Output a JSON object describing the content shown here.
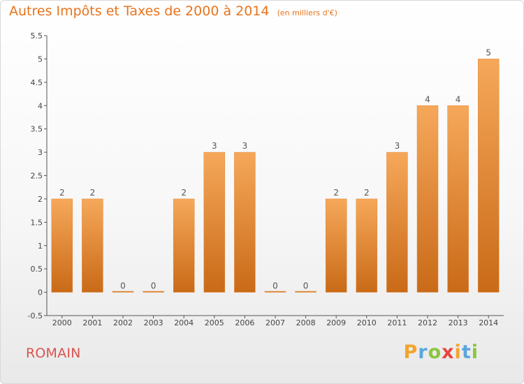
{
  "header": {
    "title": "Autres Impôts et Taxes de 2000 à 2014",
    "subtitle": "(en milliers d'€)"
  },
  "footer": {
    "town": "ROMAIN",
    "brand": "Proxiti",
    "brand_letters": [
      "P",
      "r",
      "o",
      "x",
      "i",
      "t",
      "i"
    ]
  },
  "colors": {
    "bar_top": "#f6a85a",
    "bar_bottom": "#c96a17",
    "title": "#e8731c",
    "town": "#d9534f",
    "axis": "#555555"
  },
  "chart_data": {
    "type": "bar",
    "title": "Autres Impôts et Taxes de 2000 à 2014",
    "subtitle": "(en milliers d'€)",
    "categories": [
      "2000",
      "2001",
      "2002",
      "2003",
      "2004",
      "2005",
      "2006",
      "2007",
      "2008",
      "2009",
      "2010",
      "2011",
      "2012",
      "2013",
      "2014"
    ],
    "values": [
      2,
      2,
      0,
      0,
      2,
      3,
      3,
      0,
      0,
      2,
      2,
      3,
      4,
      4,
      5
    ],
    "data_labels": [
      "2",
      "2",
      "0",
      "0",
      "2",
      "3",
      "3",
      "0",
      "0",
      "2",
      "2",
      "3",
      "4",
      "4",
      "5"
    ],
    "ylim": [
      -0.5,
      5.5
    ],
    "yticks": [
      -0.5,
      0,
      0.5,
      1,
      1.5,
      2,
      2.5,
      3,
      3.5,
      4,
      4.5,
      5,
      5.5
    ],
    "ytick_labels": [
      "-0.5",
      "0",
      "0.5",
      "1",
      "1.5",
      "2",
      "2.5",
      "3",
      "3.5",
      "4",
      "4.5",
      "5",
      "5.5"
    ],
    "xlabel": "",
    "ylabel": "",
    "grid": false,
    "legend": "none"
  }
}
